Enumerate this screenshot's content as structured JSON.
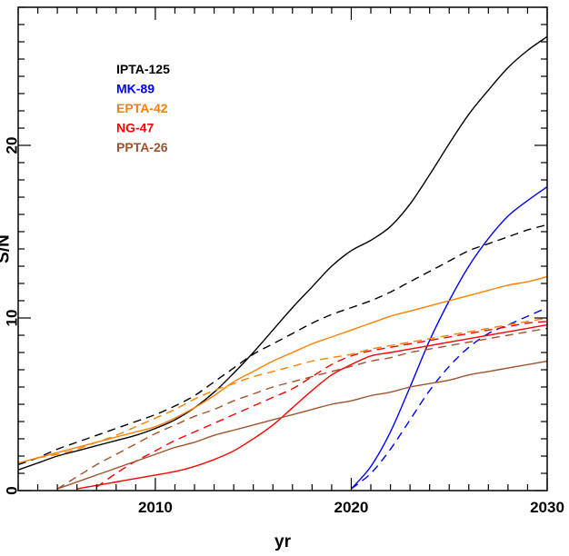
{
  "chart_data": {
    "type": "line",
    "xlabel": "yr",
    "ylabel": "S/N",
    "xlim": [
      2003,
      2030
    ],
    "ylim": [
      0,
      28
    ],
    "xticks": [
      {
        "value": 2010,
        "label": "2010"
      },
      {
        "value": 2020,
        "label": "2020"
      },
      {
        "value": 2030,
        "label": "2030"
      }
    ],
    "yticks": [
      {
        "value": 0,
        "label": "0"
      },
      {
        "value": 10,
        "label": "10"
      },
      {
        "value": 20,
        "label": "20"
      }
    ],
    "grid": false,
    "legend_position": "top-left",
    "series": [
      {
        "name": "IPTA-125",
        "color": "#000000",
        "style": "solid",
        "points": [
          [
            2003,
            1.2
          ],
          [
            2004,
            1.6
          ],
          [
            2005,
            2.0
          ],
          [
            2006,
            2.3
          ],
          [
            2007,
            2.6
          ],
          [
            2008,
            2.9
          ],
          [
            2009,
            3.2
          ],
          [
            2010,
            3.6
          ],
          [
            2011,
            4.1
          ],
          [
            2012,
            4.8
          ],
          [
            2013,
            5.7
          ],
          [
            2014,
            6.8
          ],
          [
            2015,
            8.0
          ],
          [
            2016,
            9.3
          ],
          [
            2017,
            10.6
          ],
          [
            2018,
            11.8
          ],
          [
            2019,
            13.0
          ],
          [
            2020,
            13.9
          ],
          [
            2021,
            14.5
          ],
          [
            2022,
            15.3
          ],
          [
            2023,
            16.6
          ],
          [
            2024,
            18.3
          ],
          [
            2025,
            20.1
          ],
          [
            2026,
            21.8
          ],
          [
            2027,
            23.2
          ],
          [
            2028,
            24.5
          ],
          [
            2029,
            25.5
          ],
          [
            2030,
            26.3
          ]
        ]
      },
      {
        "name": "",
        "color": "#000000",
        "style": "dashed",
        "points": [
          [
            2003,
            1.5
          ],
          [
            2004,
            1.9
          ],
          [
            2005,
            2.4
          ],
          [
            2006,
            2.8
          ],
          [
            2007,
            3.2
          ],
          [
            2008,
            3.6
          ],
          [
            2009,
            4.0
          ],
          [
            2010,
            4.4
          ],
          [
            2011,
            4.9
          ],
          [
            2012,
            5.5
          ],
          [
            2013,
            6.3
          ],
          [
            2014,
            7.1
          ],
          [
            2015,
            7.9
          ],
          [
            2016,
            8.5
          ],
          [
            2017,
            9.1
          ],
          [
            2018,
            9.7
          ],
          [
            2019,
            10.2
          ],
          [
            2020,
            10.6
          ],
          [
            2021,
            11.0
          ],
          [
            2022,
            11.5
          ],
          [
            2023,
            12.1
          ],
          [
            2024,
            12.7
          ],
          [
            2025,
            13.3
          ],
          [
            2026,
            13.9
          ],
          [
            2027,
            14.3
          ],
          [
            2028,
            14.7
          ],
          [
            2029,
            15.1
          ],
          [
            2030,
            15.4
          ]
        ]
      },
      {
        "name": "MK-89",
        "color": "#0000ff",
        "style": "solid",
        "points": [
          [
            2020,
            0.1
          ],
          [
            2021,
            1.4
          ],
          [
            2022,
            3.4
          ],
          [
            2023,
            6.0
          ],
          [
            2024,
            8.7
          ],
          [
            2025,
            11.0
          ],
          [
            2026,
            13.0
          ],
          [
            2027,
            14.6
          ],
          [
            2028,
            15.9
          ],
          [
            2029,
            16.8
          ],
          [
            2030,
            17.6
          ]
        ]
      },
      {
        "name": "",
        "color": "#0000ff",
        "style": "dashed",
        "points": [
          [
            2020,
            0.1
          ],
          [
            2021,
            1.0
          ],
          [
            2022,
            2.4
          ],
          [
            2023,
            4.1
          ],
          [
            2024,
            5.8
          ],
          [
            2025,
            7.2
          ],
          [
            2026,
            8.3
          ],
          [
            2027,
            9.1
          ],
          [
            2028,
            9.6
          ],
          [
            2029,
            10.1
          ],
          [
            2030,
            10.6
          ]
        ]
      },
      {
        "name": "EPTA-42",
        "color": "#ff8000",
        "style": "solid",
        "points": [
          [
            2003,
            1.6
          ],
          [
            2004,
            1.9
          ],
          [
            2005,
            2.2
          ],
          [
            2006,
            2.5
          ],
          [
            2007,
            2.8
          ],
          [
            2008,
            3.1
          ],
          [
            2009,
            3.4
          ],
          [
            2010,
            3.7
          ],
          [
            2011,
            4.2
          ],
          [
            2012,
            4.8
          ],
          [
            2013,
            5.5
          ],
          [
            2014,
            6.3
          ],
          [
            2015,
            6.9
          ],
          [
            2016,
            7.5
          ],
          [
            2017,
            8.0
          ],
          [
            2018,
            8.5
          ],
          [
            2019,
            8.9
          ],
          [
            2020,
            9.3
          ],
          [
            2021,
            9.7
          ],
          [
            2022,
            10.1
          ],
          [
            2023,
            10.4
          ],
          [
            2024,
            10.7
          ],
          [
            2025,
            11.0
          ],
          [
            2026,
            11.3
          ],
          [
            2027,
            11.6
          ],
          [
            2028,
            11.9
          ],
          [
            2029,
            12.1
          ],
          [
            2030,
            12.4
          ]
        ]
      },
      {
        "name": "",
        "color": "#ff8000",
        "style": "dashed",
        "points": [
          [
            2004,
            1.9
          ],
          [
            2005,
            2.1
          ],
          [
            2006,
            2.4
          ],
          [
            2007,
            2.8
          ],
          [
            2008,
            3.2
          ],
          [
            2009,
            3.7
          ],
          [
            2010,
            4.2
          ],
          [
            2011,
            4.7
          ],
          [
            2012,
            5.3
          ],
          [
            2013,
            5.8
          ],
          [
            2014,
            6.2
          ],
          [
            2015,
            6.6
          ],
          [
            2016,
            6.9
          ],
          [
            2017,
            7.2
          ],
          [
            2018,
            7.5
          ],
          [
            2019,
            7.7
          ],
          [
            2020,
            7.9
          ],
          [
            2021,
            8.2
          ],
          [
            2022,
            8.4
          ],
          [
            2023,
            8.6
          ],
          [
            2024,
            8.8
          ],
          [
            2025,
            9.0
          ],
          [
            2026,
            9.2
          ],
          [
            2027,
            9.4
          ],
          [
            2028,
            9.6
          ],
          [
            2029,
            9.8
          ],
          [
            2030,
            10.0
          ]
        ]
      },
      {
        "name": "NG-47",
        "color": "#ff0000",
        "style": "solid",
        "points": [
          [
            2006,
            0.1
          ],
          [
            2007,
            0.3
          ],
          [
            2008,
            0.5
          ],
          [
            2009,
            0.7
          ],
          [
            2010,
            0.9
          ],
          [
            2011,
            1.1
          ],
          [
            2012,
            1.4
          ],
          [
            2013,
            1.8
          ],
          [
            2014,
            2.3
          ],
          [
            2015,
            3.0
          ],
          [
            2016,
            3.8
          ],
          [
            2017,
            4.8
          ],
          [
            2018,
            5.8
          ],
          [
            2019,
            6.7
          ],
          [
            2020,
            7.3
          ],
          [
            2021,
            7.8
          ],
          [
            2022,
            8.0
          ],
          [
            2023,
            8.2
          ],
          [
            2024,
            8.4
          ],
          [
            2025,
            8.6
          ],
          [
            2026,
            8.8
          ],
          [
            2027,
            9.0
          ],
          [
            2028,
            9.2
          ],
          [
            2029,
            9.4
          ],
          [
            2030,
            9.6
          ]
        ]
      },
      {
        "name": "",
        "color": "#ff0000",
        "style": "dashed",
        "points": [
          [
            2007,
            0.2
          ],
          [
            2008,
            1.0
          ],
          [
            2009,
            1.7
          ],
          [
            2010,
            2.3
          ],
          [
            2011,
            2.9
          ],
          [
            2012,
            3.4
          ],
          [
            2013,
            3.9
          ],
          [
            2014,
            4.4
          ],
          [
            2015,
            4.9
          ],
          [
            2016,
            5.4
          ],
          [
            2017,
            5.9
          ],
          [
            2018,
            6.6
          ],
          [
            2019,
            7.3
          ],
          [
            2020,
            7.8
          ],
          [
            2021,
            8.1
          ],
          [
            2022,
            8.3
          ],
          [
            2023,
            8.5
          ],
          [
            2024,
            8.7
          ],
          [
            2025,
            8.9
          ],
          [
            2026,
            9.1
          ],
          [
            2027,
            9.3
          ],
          [
            2028,
            9.5
          ],
          [
            2029,
            9.7
          ],
          [
            2030,
            9.8
          ]
        ]
      },
      {
        "name": "PPTA-26",
        "color": "#a0522d",
        "style": "solid",
        "points": [
          [
            2005,
            0.1
          ],
          [
            2006,
            0.5
          ],
          [
            2007,
            0.9
          ],
          [
            2008,
            1.3
          ],
          [
            2009,
            1.7
          ],
          [
            2010,
            2.1
          ],
          [
            2011,
            2.5
          ],
          [
            2012,
            2.8
          ],
          [
            2013,
            3.2
          ],
          [
            2014,
            3.5
          ],
          [
            2015,
            3.8
          ],
          [
            2016,
            4.1
          ],
          [
            2017,
            4.4
          ],
          [
            2018,
            4.7
          ],
          [
            2019,
            5.0
          ],
          [
            2020,
            5.2
          ],
          [
            2021,
            5.5
          ],
          [
            2022,
            5.7
          ],
          [
            2023,
            6.0
          ],
          [
            2024,
            6.2
          ],
          [
            2025,
            6.4
          ],
          [
            2026,
            6.7
          ],
          [
            2027,
            6.9
          ],
          [
            2028,
            7.1
          ],
          [
            2029,
            7.3
          ],
          [
            2030,
            7.5
          ]
        ]
      },
      {
        "name": "",
        "color": "#a0522d",
        "style": "dashed",
        "points": [
          [
            2005,
            0.1
          ],
          [
            2006,
            0.8
          ],
          [
            2007,
            1.5
          ],
          [
            2008,
            2.1
          ],
          [
            2009,
            2.7
          ],
          [
            2010,
            3.3
          ],
          [
            2011,
            3.8
          ],
          [
            2012,
            4.3
          ],
          [
            2013,
            4.7
          ],
          [
            2014,
            5.2
          ],
          [
            2015,
            5.6
          ],
          [
            2016,
            6.0
          ],
          [
            2017,
            6.3
          ],
          [
            2018,
            6.6
          ],
          [
            2019,
            6.9
          ],
          [
            2020,
            7.2
          ],
          [
            2021,
            7.5
          ],
          [
            2022,
            7.7
          ],
          [
            2023,
            8.0
          ],
          [
            2024,
            8.2
          ],
          [
            2025,
            8.4
          ],
          [
            2026,
            8.6
          ],
          [
            2027,
            8.8
          ],
          [
            2028,
            9.0
          ],
          [
            2029,
            9.2
          ],
          [
            2030,
            9.4
          ]
        ]
      }
    ]
  }
}
